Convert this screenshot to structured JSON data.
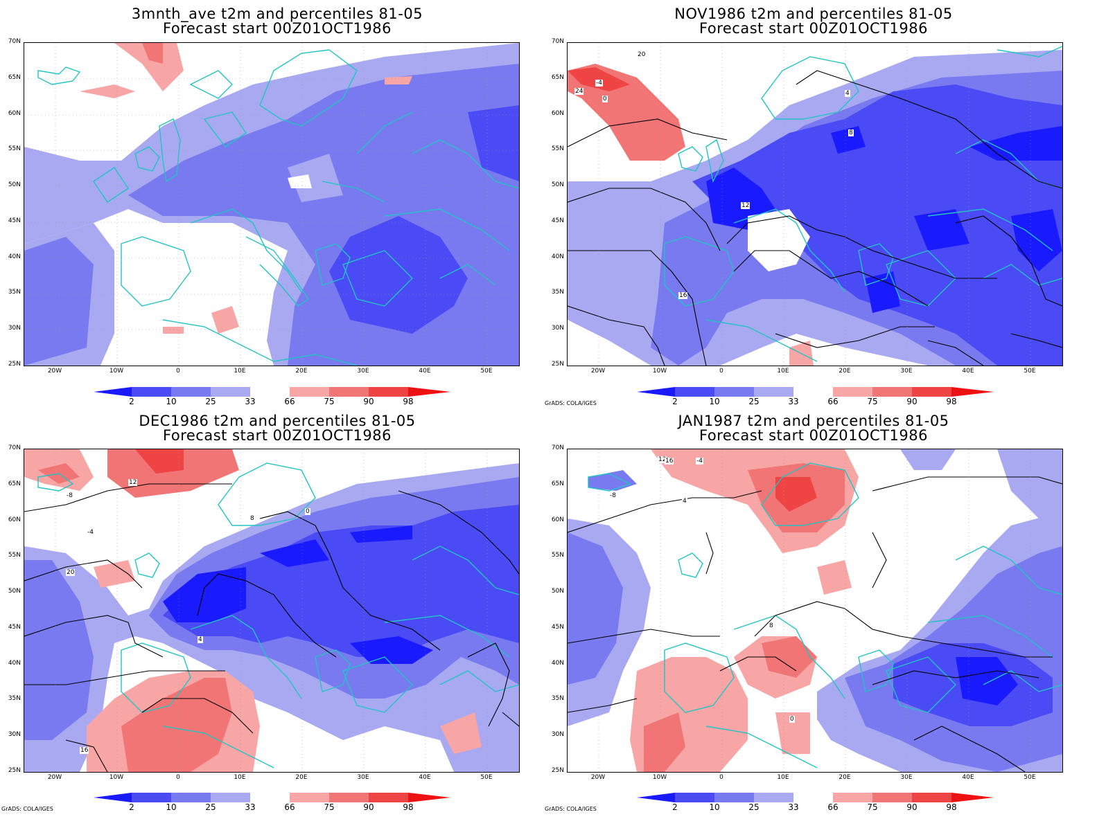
{
  "credit": "GrADS: COLA/IGES",
  "colors": {
    "blue_dark": "#1a1aff",
    "blue_mid": "#4b4bf5",
    "blue_light": "#7a7af0",
    "blue_pale": "#a9a9f2",
    "red_pale": "#f7a5a5",
    "red_light": "#f27575",
    "red_mid": "#ef4444",
    "red_dark": "#ee1111",
    "coast": "#20c4c4",
    "contour": "#000000"
  },
  "lat_labels": [
    "70N",
    "65N",
    "60N",
    "55N",
    "50N",
    "45N",
    "40N",
    "35N",
    "30N",
    "25N"
  ],
  "lon_labels": [
    "20W",
    "10W",
    "0",
    "10E",
    "20E",
    "30E",
    "40E",
    "50E"
  ],
  "colorbar_labels": [
    "2",
    "10",
    "25",
    "33",
    "66",
    "75",
    "90",
    "98"
  ],
  "panels": [
    {
      "title_line1": "3mnth_ave t2m and percentiles 81-05",
      "title_line2": "Forecast start 00Z01OCT1986",
      "contour_labels": []
    },
    {
      "title_line1": "NOV1986 t2m and percentiles 81-05",
      "title_line2": "Forecast start 00Z01OCT1986",
      "contour_labels": [
        "-4",
        "0",
        "4",
        "8",
        "12",
        "16",
        "20",
        "24"
      ]
    },
    {
      "title_line1": "DEC1986 t2m and percentiles 81-05",
      "title_line2": "Forecast start 00Z01OCT1986",
      "contour_labels": [
        "-8",
        "-4",
        "0",
        "4",
        "8",
        "12",
        "16",
        "20"
      ]
    },
    {
      "title_line1": "JAN1987 t2m and percentiles 81-05",
      "title_line2": "Forecast start 00Z01OCT1986",
      "contour_labels": [
        "-8",
        "-4",
        "0",
        "4",
        "8",
        "12",
        "16"
      ]
    }
  ]
}
